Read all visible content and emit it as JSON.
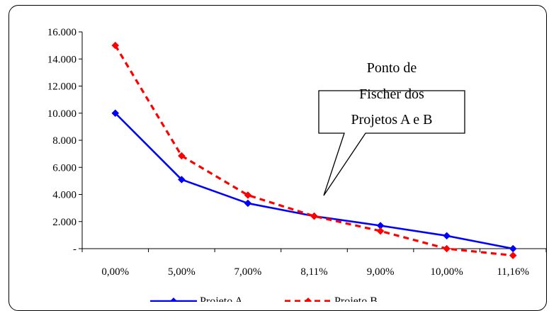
{
  "chart_data": {
    "type": "line",
    "categories": [
      "0,00%",
      "5,00%",
      "7,00%",
      "8,11%",
      "9,00%",
      "10,00%",
      "11,16%"
    ],
    "y_ticks": [
      "-",
      "2.000",
      "4.000",
      "6.000",
      "8.000",
      "10.000",
      "12.000",
      "14.000",
      "16.000"
    ],
    "ylim": [
      0,
      16000
    ],
    "grid": false,
    "legend_position": "bottom",
    "series": [
      {
        "name": "Projeto A",
        "color": "#0000FF",
        "style": "solid",
        "marker": "diamond",
        "values": [
          10000,
          5100,
          3350,
          2400,
          1700,
          950,
          0
        ]
      },
      {
        "name": "Projeto B",
        "color": "#FF0000",
        "style": "dashed",
        "marker": "diamond",
        "values": [
          15000,
          6850,
          3950,
          2400,
          1300,
          0,
          -500
        ]
      }
    ],
    "annotation": {
      "lines": [
        "Ponto de",
        "Fischer dos",
        "Projetos A e B"
      ]
    }
  }
}
